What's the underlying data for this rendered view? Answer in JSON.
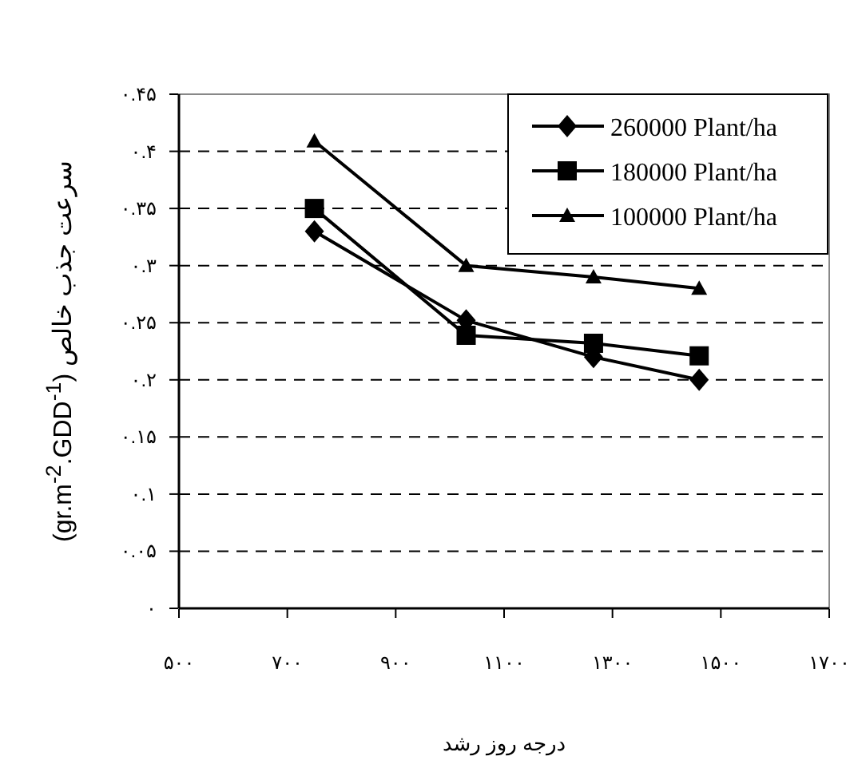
{
  "chart_data": {
    "type": "line",
    "xlabel": "درجه روز رشد",
    "ylabel": "سرعت جذب خالص (gr.m$^{-2}$.GDD$^{-1}$)",
    "xlim": [
      500,
      1700
    ],
    "ylim": [
      0,
      0.45
    ],
    "xticks": [
      {
        "value": 500,
        "label": "۵۰۰"
      },
      {
        "value": 700,
        "label": "۷۰۰"
      },
      {
        "value": 900,
        "label": "۹۰۰"
      },
      {
        "value": 1100,
        "label": "۱۱۰۰"
      },
      {
        "value": 1300,
        "label": "۱۳۰۰"
      },
      {
        "value": 1500,
        "label": "۱۵۰۰"
      },
      {
        "value": 1700,
        "label": "۱۷۰۰"
      }
    ],
    "yticks": [
      {
        "value": 0,
        "label": "۰"
      },
      {
        "value": 0.05,
        "label": "۰.۰۵"
      },
      {
        "value": 0.1,
        "label": "۰.۱"
      },
      {
        "value": 0.15,
        "label": "۰.۱۵"
      },
      {
        "value": 0.2,
        "label": "۰.۲"
      },
      {
        "value": 0.25,
        "label": "۰.۲۵"
      },
      {
        "value": 0.3,
        "label": "۰.۳"
      },
      {
        "value": 0.35,
        "label": "۰.۳۵"
      },
      {
        "value": 0.4,
        "label": "۰.۴"
      },
      {
        "value": 0.45,
        "label": "۰.۴۵"
      }
    ],
    "x": [
      750,
      1030,
      1265,
      1460
    ],
    "grid": "y",
    "legend": "top right",
    "line_style": "solid",
    "series": [
      {
        "name": "260000 Plant/ha",
        "color": "#000000",
        "marker": "diamond",
        "values": [
          0.33,
          0.252,
          0.22,
          0.2
        ]
      },
      {
        "name": "180000 Plant/ha",
        "color": "#000000",
        "marker": "square",
        "values": [
          0.35,
          0.239,
          0.232,
          0.221
        ]
      },
      {
        "name": "100000 Plant/ha",
        "color": "#000000",
        "marker": "triangle",
        "values": [
          0.409,
          0.3,
          0.29,
          0.28
        ]
      }
    ]
  }
}
